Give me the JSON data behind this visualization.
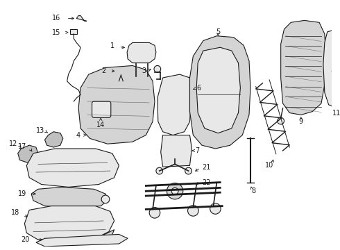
{
  "background_color": "#ffffff",
  "line_color": "#1a1a1a",
  "gray_fill": "#e8e8e8",
  "gray_mid": "#d4d4d4",
  "gray_dark": "#c0c0c0"
}
